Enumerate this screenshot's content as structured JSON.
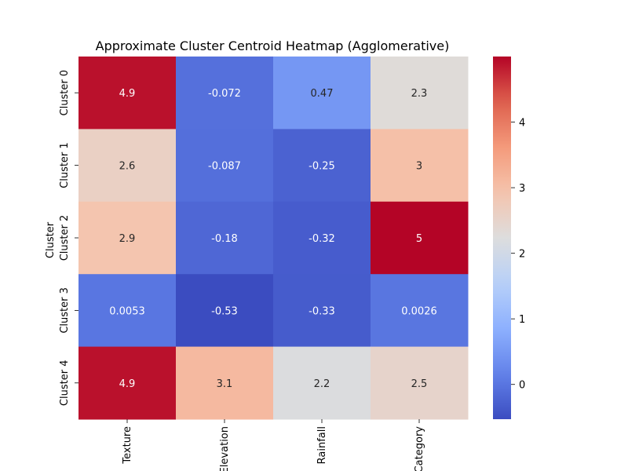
{
  "chart_data": {
    "type": "heatmap",
    "title": "Approximate Cluster Centroid Heatmap (Agglomerative)",
    "xlabel": "",
    "ylabel": "Cluster",
    "x_labels": [
      "Texture",
      "Elevation",
      "Rainfall",
      "Category"
    ],
    "y_labels": [
      "Cluster 0",
      "Cluster 1",
      "Cluster 2",
      "Cluster 3",
      "Cluster 4"
    ],
    "values": [
      [
        4.9,
        -0.072,
        0.47,
        2.3
      ],
      [
        2.6,
        -0.087,
        -0.25,
        3
      ],
      [
        2.9,
        -0.18,
        -0.32,
        5
      ],
      [
        0.0053,
        -0.53,
        -0.33,
        0.0026
      ],
      [
        4.9,
        3.1,
        2.2,
        2.5
      ]
    ],
    "value_labels": [
      [
        "4.9",
        "-0.072",
        "0.47",
        "2.3"
      ],
      [
        "2.6",
        "-0.087",
        "-0.25",
        "3"
      ],
      [
        "2.9",
        "-0.18",
        "-0.32",
        "5"
      ],
      [
        "0.0053",
        "-0.53",
        "-0.33",
        "0.0026"
      ],
      [
        "4.9",
        "3.1",
        "2.2",
        "2.5"
      ]
    ],
    "colormap": "coolwarm",
    "vmin": -0.53,
    "vmax": 5,
    "colorbar_ticks": [
      0,
      1,
      2,
      3,
      4
    ],
    "colorbar_tick_labels": [
      "0",
      "1",
      "2",
      "3",
      "4"
    ],
    "colorbar_position": "right"
  }
}
